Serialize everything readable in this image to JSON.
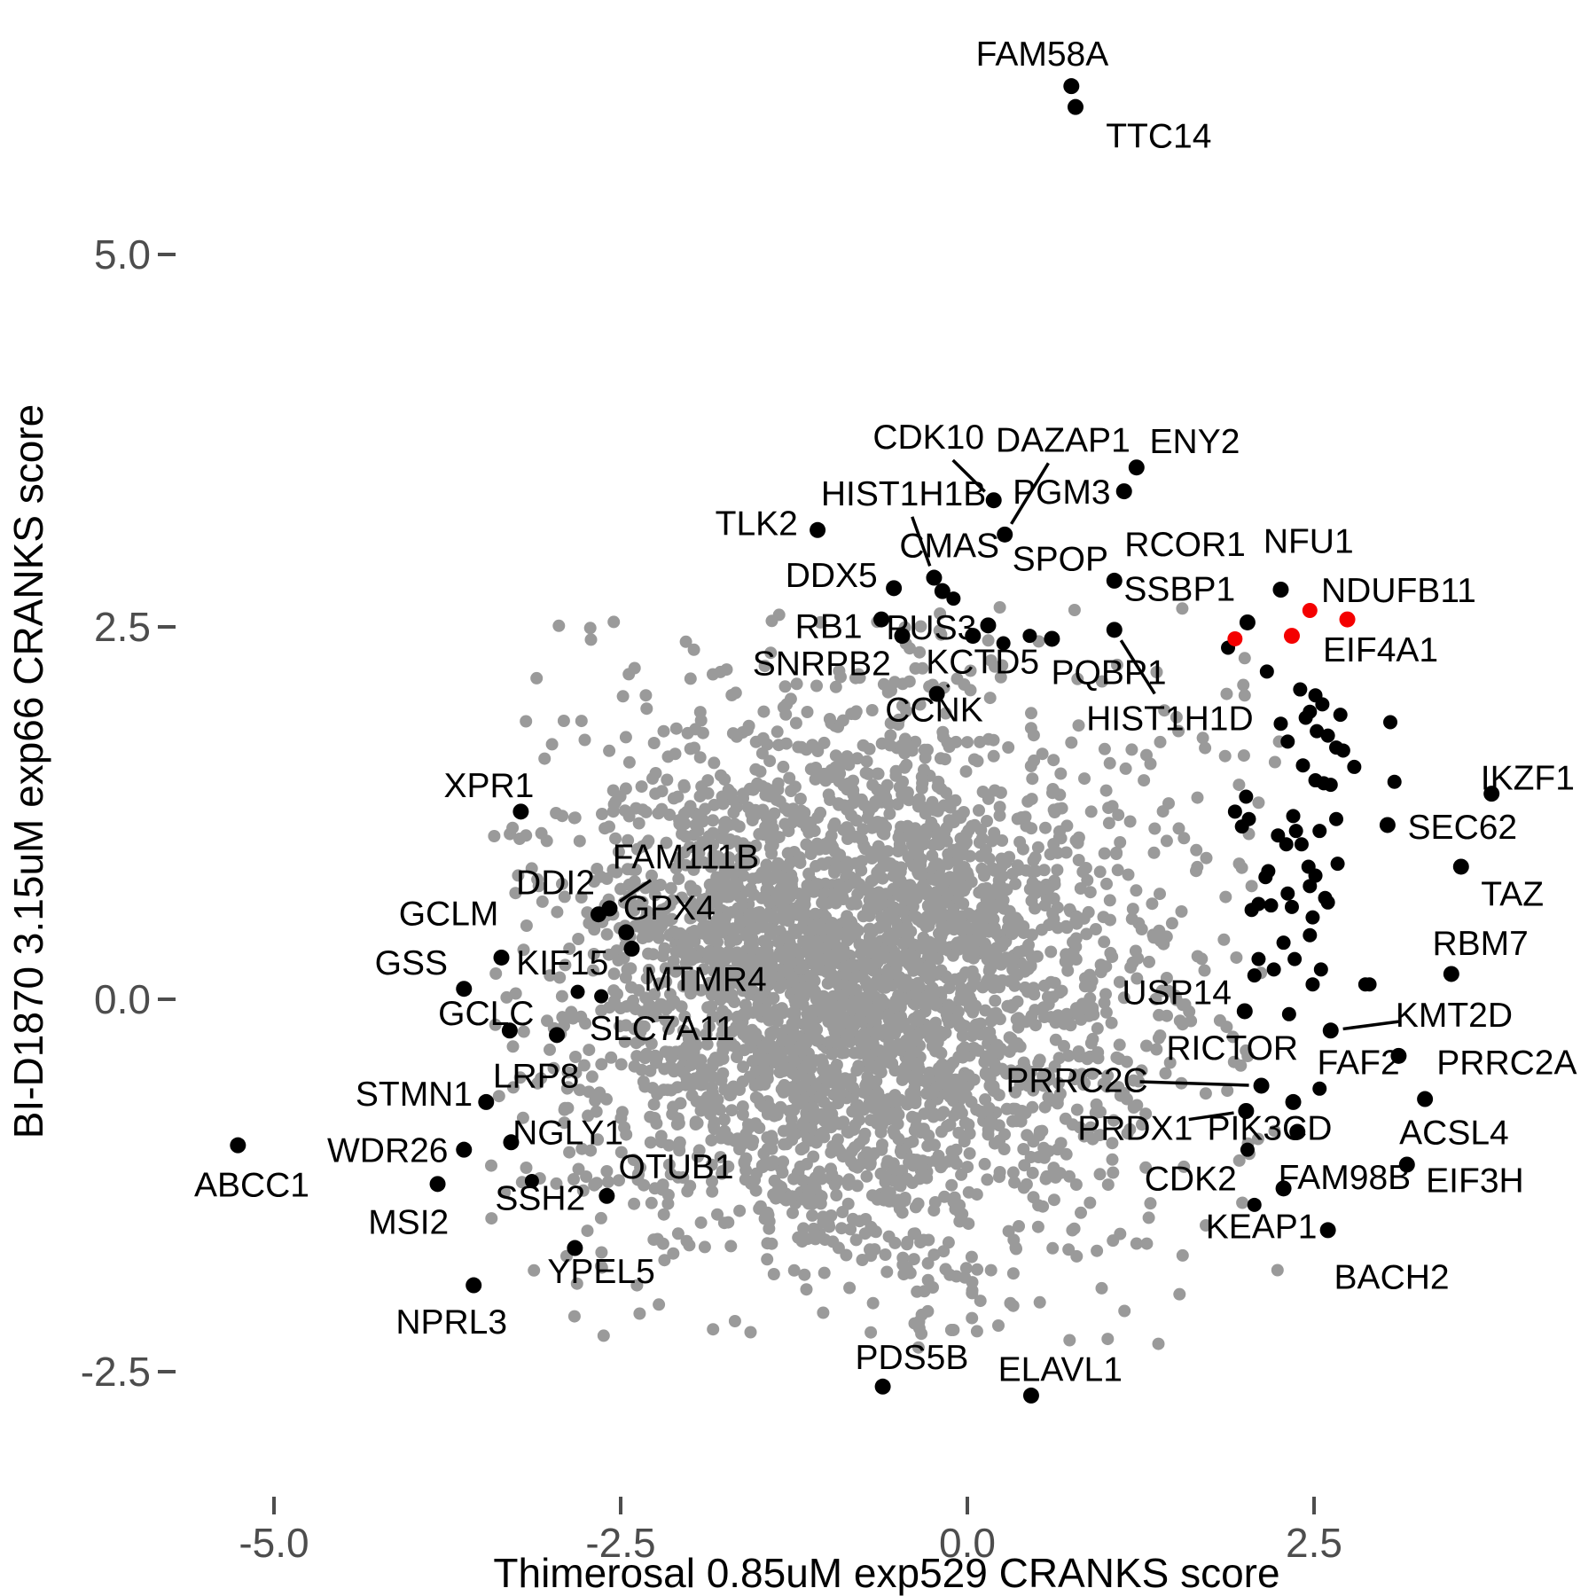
{
  "chart_data": {
    "type": "scatter",
    "title": "",
    "xlabel": "Thimerosal 0.85uM exp529 CRANKS score",
    "ylabel": "BI-D1870 3.15uM exp66 CRANKS score",
    "x_ticks": [
      -5.0,
      -2.5,
      0.0,
      2.5
    ],
    "x_tick_labels": [
      "-5.0",
      "-2.5",
      "0.0",
      "2.5"
    ],
    "y_ticks": [
      5.0,
      2.5,
      0.0,
      -2.5
    ],
    "y_tick_labels": [
      "5.0",
      "2.5",
      "0.0",
      "-2.5"
    ],
    "xlim": [
      -5.95,
      4.55
    ],
    "ylim": [
      -3.05,
      6.6
    ],
    "grid": false,
    "legend": "none",
    "colors": {
      "background_point": "#9a9a9a",
      "highlight_point": "#000000",
      "red_point": "#f40000",
      "tick_label": "#4d4d4d",
      "axis_title": "#000000"
    },
    "labeled_points": [
      {
        "label": "FAM58A",
        "x": 0.75,
        "y": 6.13,
        "color": "black",
        "label_x": 0.54,
        "label_y": 6.35,
        "leader": false
      },
      {
        "label": "TTC14",
        "x": 0.78,
        "y": 5.99,
        "color": "black",
        "label_x": 1.38,
        "label_y": 5.8,
        "leader": false
      },
      {
        "label": "CDK10",
        "x": 0.19,
        "y": 3.35,
        "color": "black",
        "label_x": -0.28,
        "label_y": 3.78,
        "leader": true
      },
      {
        "label": "DAZAP1",
        "x": 0.27,
        "y": 3.12,
        "color": "black",
        "label_x": 0.69,
        "label_y": 3.76,
        "leader": true
      },
      {
        "label": "ENY2",
        "x": 1.22,
        "y": 3.57,
        "color": "black",
        "label_x": 1.64,
        "label_y": 3.75,
        "leader": false
      },
      {
        "label": "HIST1H1B",
        "x": -0.24,
        "y": 2.83,
        "color": "black",
        "label_x": -0.46,
        "label_y": 3.4,
        "leader": true
      },
      {
        "label": "PGM3",
        "x": 1.13,
        "y": 3.41,
        "color": "black",
        "label_x": 0.68,
        "label_y": 3.41,
        "leader": false
      },
      {
        "label": "TLK2",
        "x": -1.08,
        "y": 3.15,
        "color": "black",
        "label_x": -1.52,
        "label_y": 3.2,
        "leader": false
      },
      {
        "label": "CMAS",
        "x": -0.18,
        "y": 2.74,
        "color": "black",
        "label_x": -0.13,
        "label_y": 3.05,
        "leader": false
      },
      {
        "label": "DDX5",
        "x": -0.53,
        "y": 2.76,
        "color": "black",
        "label_x": -0.98,
        "label_y": 2.85,
        "leader": false
      },
      {
        "label": "SPOP",
        "x": 0.15,
        "y": 2.51,
        "color": "black",
        "label_x": 0.67,
        "label_y": 2.96,
        "leader": false
      },
      {
        "label": "RCOR1",
        "x": 1.06,
        "y": 2.81,
        "color": "black",
        "label_x": 1.57,
        "label_y": 3.06,
        "leader": false
      },
      {
        "label": "NFU1",
        "x": 2.26,
        "y": 2.75,
        "color": "black",
        "label_x": 2.46,
        "label_y": 3.08,
        "leader": false
      },
      {
        "label": "RB1",
        "x": -0.62,
        "y": 2.55,
        "color": "black",
        "label_x": -1.0,
        "label_y": 2.51,
        "leader": false
      },
      {
        "label": "PUS3",
        "x": 0.04,
        "y": 2.44,
        "color": "black",
        "label_x": -0.26,
        "label_y": 2.5,
        "leader": false
      },
      {
        "label": "SSBP1",
        "x": 2.02,
        "y": 2.53,
        "color": "black",
        "label_x": 1.53,
        "label_y": 2.76,
        "leader": false
      },
      {
        "label": "NDUFB11",
        "x": 2.74,
        "y": 2.55,
        "color": "red",
        "label_x": 3.11,
        "label_y": 2.75,
        "leader": false
      },
      {
        "label": "SNRPB2",
        "x": -0.47,
        "y": 2.44,
        "color": "black",
        "label_x": -1.05,
        "label_y": 2.26,
        "leader": false
      },
      {
        "label": "KCTD5",
        "x": -0.22,
        "y": 2.05,
        "color": "black",
        "label_x": 0.11,
        "label_y": 2.27,
        "leader": true
      },
      {
        "label": "PQBP1",
        "x": 0.61,
        "y": 2.42,
        "color": "black",
        "label_x": 1.02,
        "label_y": 2.2,
        "leader": false
      },
      {
        "label": "EIF4A1",
        "x": 2.34,
        "y": 2.44,
        "color": "red",
        "label_x": 2.98,
        "label_y": 2.35,
        "leader": false
      },
      {
        "label": "CCNK",
        "x": null,
        "y": null,
        "color": "black",
        "label_x": -0.24,
        "label_y": 1.95,
        "leader": false
      },
      {
        "label": "HIST1H1D",
        "x": 1.06,
        "y": 2.48,
        "color": "black",
        "label_x": 1.46,
        "label_y": 1.89,
        "leader": true
      },
      {
        "label": "IKZF1",
        "x": 3.78,
        "y": 1.38,
        "color": "black",
        "label_x": 4.04,
        "label_y": 1.49,
        "leader": false
      },
      {
        "label": "SEC62",
        "x": 3.03,
        "y": 1.17,
        "color": "black",
        "label_x": 3.57,
        "label_y": 1.16,
        "leader": false
      },
      {
        "label": "XPR1",
        "x": -3.22,
        "y": 1.26,
        "color": "black",
        "label_x": -3.45,
        "label_y": 1.44,
        "leader": false
      },
      {
        "label": "TAZ",
        "x": 3.56,
        "y": 0.89,
        "color": "black",
        "label_x": 3.93,
        "label_y": 0.71,
        "leader": false
      },
      {
        "label": "FAM111B",
        "x": -2.58,
        "y": 0.61,
        "color": "black",
        "label_x": -2.03,
        "label_y": 0.96,
        "leader": true
      },
      {
        "label": "DDI2",
        "x": -2.66,
        "y": 0.57,
        "color": "black",
        "label_x": -2.97,
        "label_y": 0.79,
        "leader": false
      },
      {
        "label": "RBM7",
        "x": 3.49,
        "y": 0.17,
        "color": "black",
        "label_x": 3.7,
        "label_y": 0.38,
        "leader": false
      },
      {
        "label": "GPX4",
        "x": -2.46,
        "y": 0.45,
        "color": "black",
        "label_x": -2.15,
        "label_y": 0.62,
        "leader": false
      },
      {
        "label": "GCLM",
        "x": -3.36,
        "y": 0.28,
        "color": "black",
        "label_x": -3.74,
        "label_y": 0.58,
        "leader": false
      },
      {
        "label": "GSS",
        "x": -3.63,
        "y": 0.07,
        "color": "black",
        "label_x": -4.01,
        "label_y": 0.25,
        "leader": false
      },
      {
        "label": "KIF15",
        "x": -2.42,
        "y": 0.34,
        "color": "black",
        "label_x": -2.92,
        "label_y": 0.25,
        "leader": false
      },
      {
        "label": "MTMR4",
        "x": null,
        "y": null,
        "color": "black",
        "label_x": -1.89,
        "label_y": 0.14,
        "leader": false
      },
      {
        "label": "USP14",
        "x": 2.0,
        "y": -0.08,
        "color": "black",
        "label_x": 1.51,
        "label_y": 0.05,
        "leader": false
      },
      {
        "label": "GCLC",
        "x": -3.3,
        "y": -0.21,
        "color": "black",
        "label_x": -3.47,
        "label_y": -0.09,
        "leader": false
      },
      {
        "label": "SLC7A11",
        "x": -2.96,
        "y": -0.24,
        "color": "black",
        "label_x": -2.2,
        "label_y": -0.19,
        "leader": false
      },
      {
        "label": "KMT2D",
        "x": 2.62,
        "y": -0.21,
        "color": "black",
        "label_x": 3.51,
        "label_y": -0.1,
        "leader": true
      },
      {
        "label": "RICTOR",
        "x": 2.35,
        "y": -0.69,
        "color": "black",
        "label_x": 1.91,
        "label_y": -0.32,
        "leader": false
      },
      {
        "label": "FAF2",
        "x": 3.11,
        "y": -0.38,
        "color": "black",
        "label_x": 2.82,
        "label_y": -0.42,
        "leader": false
      },
      {
        "label": "PRRC2A",
        "x": null,
        "y": null,
        "color": "black",
        "label_x": 3.89,
        "label_y": -0.42,
        "leader": false
      },
      {
        "label": "LRP8",
        "x": null,
        "y": null,
        "color": "black",
        "label_x": -3.11,
        "label_y": -0.51,
        "leader": false
      },
      {
        "label": "STMN1",
        "x": -3.47,
        "y": -0.69,
        "color": "black",
        "label_x": -3.99,
        "label_y": -0.63,
        "leader": false
      },
      {
        "label": "PRRC2C",
        "x": 2.12,
        "y": -0.58,
        "color": "black",
        "label_x": 0.79,
        "label_y": -0.54,
        "leader": true
      },
      {
        "label": "NGLY1",
        "x": -3.29,
        "y": -0.96,
        "color": "black",
        "label_x": -2.88,
        "label_y": -0.89,
        "leader": false
      },
      {
        "label": "WDR26",
        "x": -3.63,
        "y": -1.01,
        "color": "black",
        "label_x": -4.18,
        "label_y": -1.01,
        "leader": false
      },
      {
        "label": "PRDX1",
        "x": 2.01,
        "y": -0.75,
        "color": "black",
        "label_x": 1.21,
        "label_y": -0.86,
        "leader": true
      },
      {
        "label": "PIK3CD",
        "x": 2.38,
        "y": -0.89,
        "color": "black",
        "label_x": 2.18,
        "label_y": -0.86,
        "leader": false
      },
      {
        "label": "ACSL4",
        "x": 3.3,
        "y": -0.67,
        "color": "black",
        "label_x": 3.51,
        "label_y": -0.89,
        "leader": false
      },
      {
        "label": "ABCC1",
        "x": -5.26,
        "y": -0.98,
        "color": "black",
        "label_x": -5.16,
        "label_y": -1.24,
        "leader": false
      },
      {
        "label": "MSI2",
        "x": -3.82,
        "y": -1.24,
        "color": "black",
        "label_x": -4.03,
        "label_y": -1.49,
        "leader": false
      },
      {
        "label": "SSH2",
        "x": -2.6,
        "y": -1.32,
        "color": "black",
        "label_x": -3.08,
        "label_y": -1.33,
        "leader": false
      },
      {
        "label": "OTUB1",
        "x": null,
        "y": null,
        "color": "black",
        "label_x": -2.1,
        "label_y": -1.12,
        "leader": false
      },
      {
        "label": "CDK2",
        "x": 2.28,
        "y": -1.27,
        "color": "black",
        "label_x": 1.61,
        "label_y": -1.2,
        "leader": false
      },
      {
        "label": "FAM98B",
        "x": 3.17,
        "y": -1.11,
        "color": "black",
        "label_x": 2.72,
        "label_y": -1.19,
        "leader": false
      },
      {
        "label": "EIF3H",
        "x": null,
        "y": null,
        "color": "black",
        "label_x": 3.66,
        "label_y": -1.21,
        "leader": false
      },
      {
        "label": "KEAP1",
        "x": 2.6,
        "y": -1.55,
        "color": "black",
        "label_x": 2.12,
        "label_y": -1.52,
        "leader": false
      },
      {
        "label": "BACH2",
        "x": null,
        "y": null,
        "color": "black",
        "label_x": 3.06,
        "label_y": -1.86,
        "leader": false
      },
      {
        "label": "YPEL5",
        "x": -2.83,
        "y": -1.67,
        "color": "black",
        "label_x": -2.64,
        "label_y": -1.82,
        "leader": false
      },
      {
        "label": "NPRL3",
        "x": -3.56,
        "y": -1.92,
        "color": "black",
        "label_x": -3.72,
        "label_y": -2.16,
        "leader": false
      },
      {
        "label": "PDS5B",
        "x": -0.61,
        "y": -2.6,
        "color": "black",
        "label_x": -0.4,
        "label_y": -2.4,
        "leader": false
      },
      {
        "label": "ELAVL1",
        "x": 0.46,
        "y": -2.66,
        "color": "black",
        "label_x": 0.67,
        "label_y": -2.48,
        "leader": false
      }
    ],
    "extra_red_points": [
      [
        2.47,
        2.61
      ],
      [
        1.93,
        2.42
      ]
    ],
    "extra_black_points": [
      [
        -0.1,
        2.69
      ],
      [
        0.26,
        2.39
      ],
      [
        0.45,
        2.44
      ],
      [
        1.88,
        2.36
      ],
      [
        2.16,
        2.2
      ],
      [
        2.4,
        2.08
      ],
      [
        2.51,
        2.04
      ],
      [
        2.56,
        1.98
      ],
      [
        2.47,
        1.93
      ],
      [
        2.69,
        1.91
      ],
      [
        3.05,
        1.86
      ],
      [
        2.26,
        1.85
      ],
      [
        2.44,
        1.89
      ],
      [
        2.52,
        1.8
      ],
      [
        2.6,
        1.77
      ],
      [
        2.66,
        1.69
      ],
      [
        2.71,
        1.67
      ],
      [
        2.79,
        1.56
      ],
      [
        2.42,
        1.57
      ],
      [
        2.31,
        1.73
      ],
      [
        2.51,
        1.47
      ],
      [
        2.62,
        1.44
      ],
      [
        2.01,
        1.36
      ],
      [
        1.93,
        1.26
      ],
      [
        2.03,
        1.21
      ],
      [
        1.98,
        1.16
      ],
      [
        2.35,
        1.23
      ],
      [
        2.37,
        1.13
      ],
      [
        2.24,
        1.1
      ],
      [
        2.3,
        1.04
      ],
      [
        2.54,
        1.13
      ],
      [
        2.66,
        1.21
      ],
      [
        2.57,
        1.45
      ],
      [
        3.08,
        1.46
      ],
      [
        2.41,
        1.04
      ],
      [
        2.17,
        0.86
      ],
      [
        2.15,
        0.82
      ],
      [
        2.46,
        0.89
      ],
      [
        2.51,
        0.83
      ],
      [
        2.67,
        0.91
      ],
      [
        2.47,
        0.76
      ],
      [
        2.31,
        0.71
      ],
      [
        2.34,
        0.62
      ],
      [
        2.1,
        0.64
      ],
      [
        2.05,
        0.6
      ],
      [
        2.19,
        0.63
      ],
      [
        2.58,
        0.68
      ],
      [
        2.6,
        0.65
      ],
      [
        2.49,
        0.55
      ],
      [
        2.47,
        0.43
      ],
      [
        2.28,
        0.38
      ],
      [
        2.1,
        0.27
      ],
      [
        2.21,
        0.2
      ],
      [
        2.36,
        0.27
      ],
      [
        2.07,
        0.16
      ],
      [
        2.55,
        0.2
      ],
      [
        2.49,
        0.1
      ],
      [
        2.87,
        0.1
      ],
      [
        2.9,
        0.1
      ],
      [
        2.32,
        -0.1
      ],
      [
        2.54,
        -0.6
      ],
      [
        2.02,
        -1.01
      ],
      [
        2.07,
        -1.38
      ],
      [
        -2.81,
        0.05
      ],
      [
        -2.64,
        0.02
      ],
      [
        -3.14,
        -1.22
      ]
    ],
    "extra_gray_points": [
      [
        2.0,
        2.29
      ],
      [
        1.87,
        2.05
      ],
      [
        2.0,
        2.04
      ],
      [
        1.99,
        2.11
      ],
      [
        -0.25,
        2.11
      ],
      [
        -1.41,
        2.54
      ],
      [
        -2.5,
        0.74
      ],
      [
        -3.01,
        0.16
      ],
      [
        -2.88,
        -0.49
      ],
      [
        -2.92,
        -0.12
      ],
      [
        -2.5,
        -0.06
      ],
      [
        -2.37,
        0.06
      ],
      [
        2.1,
        1.32
      ],
      [
        2.03,
        1.11
      ],
      [
        1.96,
        0.91
      ],
      [
        2.05,
        0.76
      ],
      [
        1.85,
        0.4
      ],
      [
        1.94,
        0.28
      ],
      [
        -1.43,
        -1.54
      ],
      [
        -1.22,
        -1.6
      ],
      [
        -1.0,
        -1.51
      ],
      [
        -0.58,
        -1.83
      ],
      [
        -0.1,
        -2.22
      ],
      [
        0.31,
        -2.04
      ],
      [
        0.73,
        -1.68
      ],
      [
        1.05,
        -1.62
      ],
      [
        1.22,
        -1.64
      ],
      [
        1.53,
        -1.98
      ],
      [
        -0.68,
        -2.04
      ],
      [
        -0.31,
        -1.96
      ],
      [
        -1.14,
        -1.3
      ],
      [
        -1.6,
        -1.21
      ],
      [
        -1.78,
        -1.06
      ],
      [
        1.32,
        -1.37
      ]
    ],
    "background_cloud": {
      "seed": 1337,
      "core_n": 2600,
      "core_center": [
        -0.82,
        0.12
      ],
      "core_sd": [
        0.98,
        0.86
      ],
      "mid_n": 700,
      "mid_sd": [
        1.3,
        1.12
      ],
      "fringe_n": 230,
      "fringe_sd": [
        1.62,
        1.4
      ],
      "clip_x": [
        -3.45,
        2.25
      ],
      "clip_y": [
        -2.34,
        2.64
      ]
    }
  }
}
